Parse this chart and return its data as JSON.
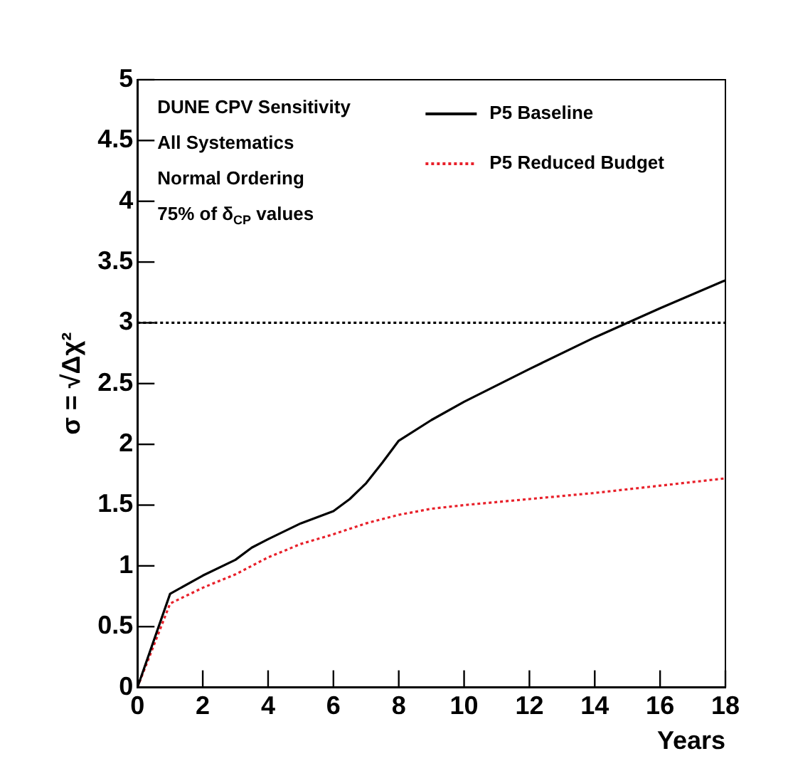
{
  "chart_data": {
    "type": "line",
    "xlabel": "Years",
    "ylabel": "σ = √Δχ²",
    "annotations": [
      "DUNE CPV Sensitivity",
      "All Systematics",
      "Normal Ordering",
      "75% of δ$_{CP}$ values"
    ],
    "series": [
      {
        "name": "P5 Baseline",
        "color": "#000000",
        "line_style": "solid",
        "x": [
          0,
          1,
          2,
          3,
          3.5,
          4,
          5,
          6,
          6.5,
          7,
          7.5,
          8,
          9,
          10,
          12,
          14,
          15,
          16,
          18
        ],
        "values": [
          0,
          0.77,
          0.92,
          1.05,
          1.15,
          1.22,
          1.35,
          1.45,
          1.55,
          1.68,
          1.85,
          2.03,
          2.2,
          2.35,
          2.62,
          2.88,
          3.0,
          3.12,
          3.35
        ]
      },
      {
        "name": "P5 Reduced Budget",
        "color": "#e8202a",
        "line_style": "dotted",
        "x": [
          0,
          1,
          2,
          3,
          4,
          5,
          6,
          7,
          8,
          9,
          10,
          12,
          14,
          16,
          18
        ],
        "values": [
          0,
          0.69,
          0.82,
          0.93,
          1.07,
          1.18,
          1.26,
          1.35,
          1.42,
          1.47,
          1.5,
          1.55,
          1.6,
          1.66,
          1.72
        ]
      }
    ],
    "xlim": [
      0,
      18
    ],
    "xticks": [
      0,
      2,
      4,
      6,
      8,
      10,
      12,
      14,
      16,
      18
    ],
    "ylim": [
      0,
      5
    ],
    "yticks": [
      0,
      0.5,
      1,
      1.5,
      2,
      2.5,
      3,
      3.5,
      4,
      4.5,
      5
    ],
    "ref_lines": [
      {
        "axis": "y",
        "value": 3,
        "color": "#000000",
        "line_style": "dotted"
      }
    ],
    "grid": false,
    "legend": "top right",
    "marker": "none"
  }
}
